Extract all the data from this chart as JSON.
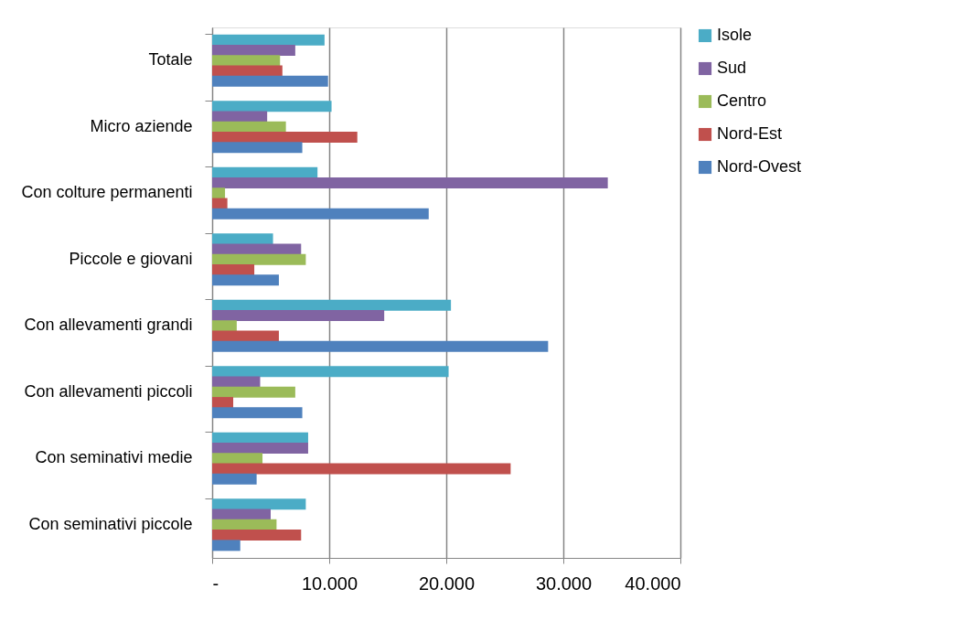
{
  "chart_data": {
    "type": "bar",
    "orientation": "horizontal",
    "categories": [
      "Totale",
      "Micro aziende",
      "Con colture permanenti",
      "Piccole e giovani",
      "Con allevamenti  grandi",
      "Con allevamenti  piccoli",
      "Con seminativi  medie",
      "Con seminativi  piccole"
    ],
    "series": [
      {
        "name": "Isole",
        "color": "#4bacc6",
        "values": [
          9600,
          10200,
          9000,
          5200,
          20400,
          20200,
          8200,
          8000
        ]
      },
      {
        "name": "Sud",
        "color": "#8064a2",
        "values": [
          7100,
          4700,
          33800,
          7600,
          14700,
          4100,
          8200,
          5000
        ]
      },
      {
        "name": "Centro",
        "color": "#9bbb59",
        "values": [
          5800,
          6300,
          1100,
          8000,
          2100,
          7100,
          4300,
          5500
        ]
      },
      {
        "name": "Nord-Est",
        "color": "#c0504d",
        "values": [
          6000,
          12400,
          1300,
          3600,
          5700,
          1800,
          25500,
          7600
        ]
      },
      {
        "name": "Nord-Ovest",
        "color": "#4f81bd",
        "values": [
          9900,
          7700,
          18500,
          5700,
          28700,
          7700,
          3800,
          2400
        ]
      }
    ],
    "xlim": [
      0,
      40000
    ],
    "xticks": [
      {
        "value": 0,
        "label": "-"
      },
      {
        "value": 10000,
        "label": "10.000"
      },
      {
        "value": 20000,
        "label": "20.000"
      },
      {
        "value": 30000,
        "label": "30.000"
      },
      {
        "value": 40000,
        "label": "40.000"
      }
    ],
    "grid": "x",
    "legend": "right"
  }
}
